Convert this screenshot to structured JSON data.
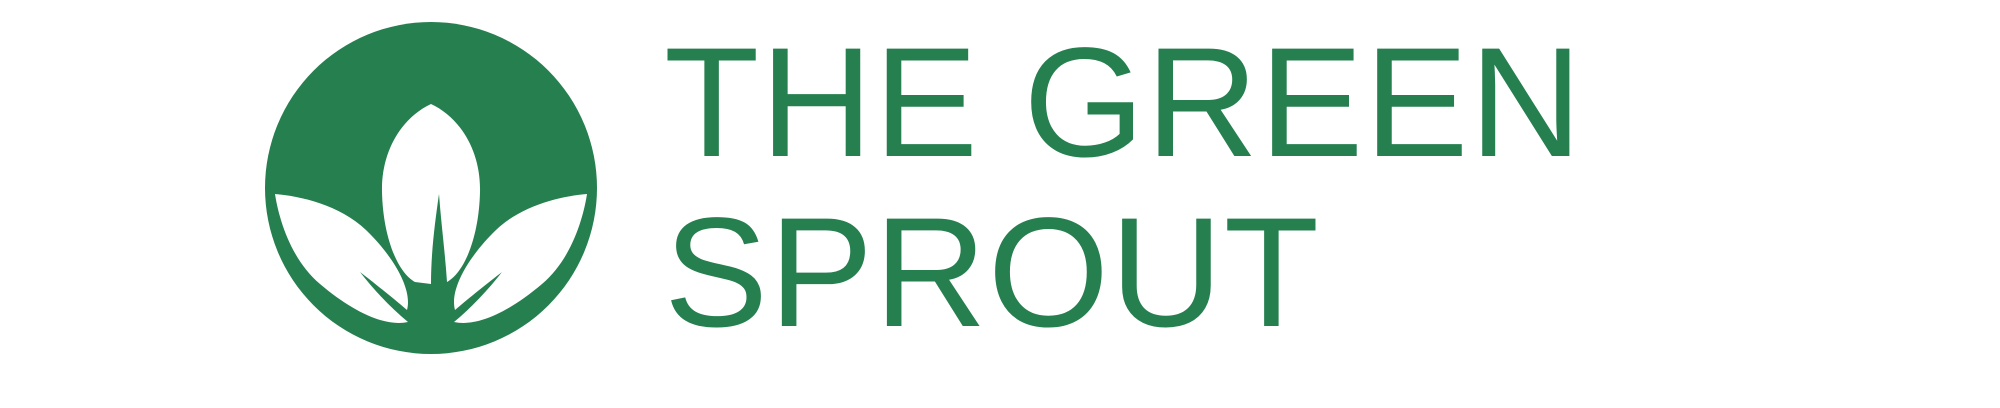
{
  "brand": {
    "line1": "THE GREEN",
    "line2": "SPROUT",
    "color": "#267f4f",
    "icon": "sprout-leaf-icon"
  }
}
